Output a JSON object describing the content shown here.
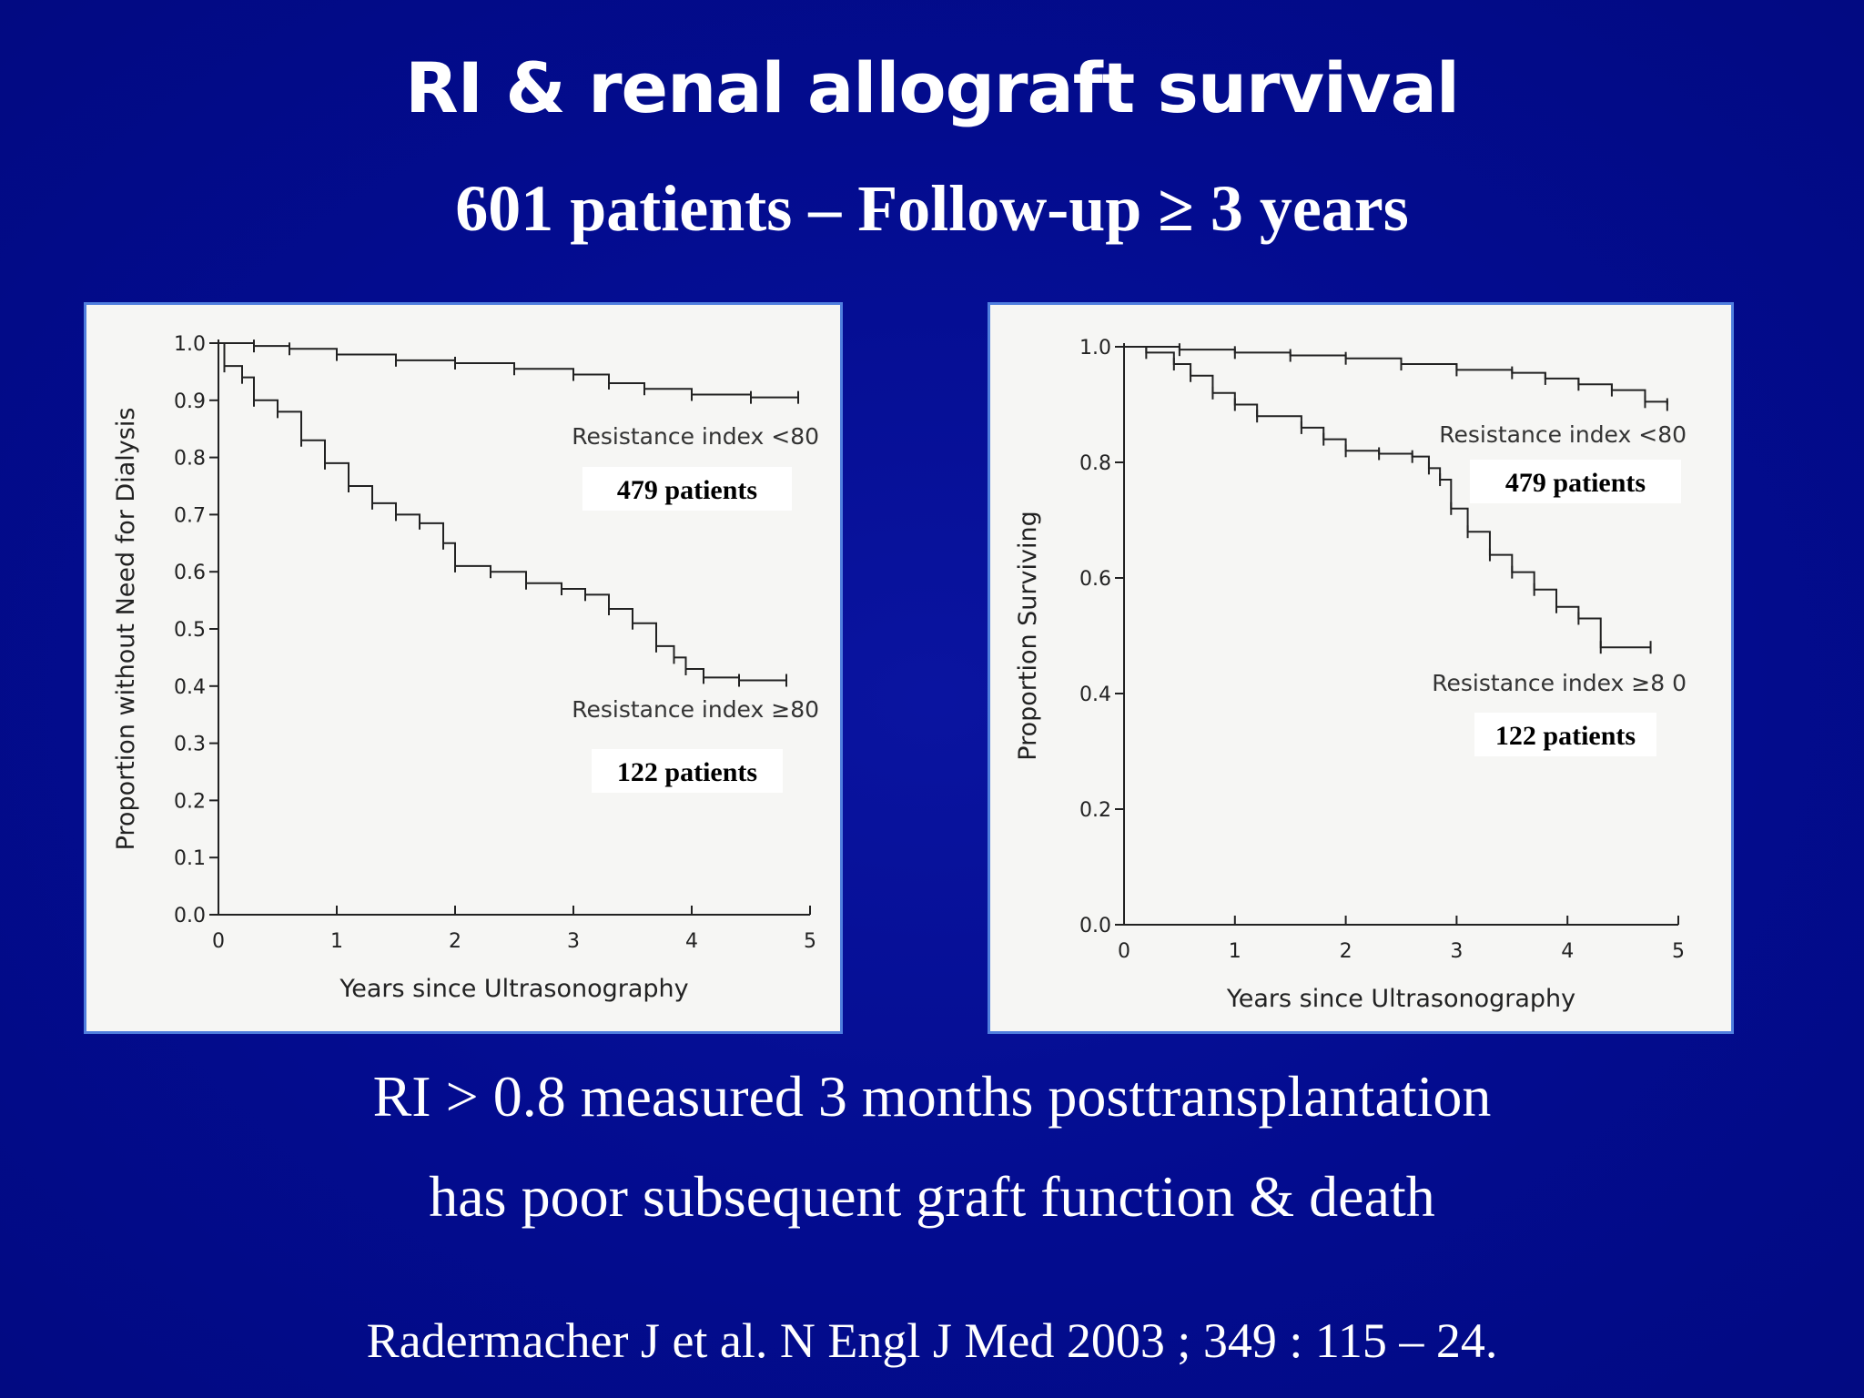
{
  "slide": {
    "title": "RI & renal allograft survival",
    "subtitle": "601 patients – Follow-up ≥ 3 years",
    "conclusion_line1": "RI > 0.8 measured 3 months posttransplantation",
    "conclusion_line2": "has poor subsequent graft function & death",
    "citation": "Radermacher J et al.  N Engl J Med 2003 ; 349 : 115 – 24."
  },
  "colors": {
    "background": "#030c8f",
    "panel_border": "#4f7ede",
    "panel_fill": "#f6f6f4",
    "curve": "#222222"
  },
  "chart_data": [
    {
      "type": "line",
      "xlabel": "Years since Ultrasonography",
      "ylabel": "Proportion without Need for Dialysis",
      "xlim": [
        0,
        5
      ],
      "ylim": [
        0,
        1
      ],
      "xticks": [
        "0",
        "1",
        "2",
        "3",
        "4",
        "5"
      ],
      "yticks": [
        "0.0",
        "0.1",
        "0.2",
        "0.3",
        "0.4",
        "0.5",
        "0.6",
        "0.7",
        "0.8",
        "0.9",
        "1.0"
      ],
      "grid": false,
      "series": [
        {
          "name": "Resistance index <80",
          "patients": "479 patients",
          "x": [
            0,
            0.3,
            0.6,
            1.0,
            1.5,
            2.0,
            2.5,
            3.0,
            3.3,
            3.6,
            4.0,
            4.5,
            4.9
          ],
          "y": [
            1.0,
            0.995,
            0.99,
            0.98,
            0.97,
            0.965,
            0.955,
            0.945,
            0.93,
            0.92,
            0.91,
            0.905,
            0.905
          ]
        },
        {
          "name": "Resistance index ≥80",
          "patients": "122 patients",
          "x": [
            0,
            0.05,
            0.2,
            0.3,
            0.5,
            0.7,
            0.9,
            1.1,
            1.3,
            1.5,
            1.7,
            1.9,
            2.0,
            2.3,
            2.6,
            2.9,
            3.1,
            3.3,
            3.5,
            3.7,
            3.85,
            3.95,
            4.1,
            4.4,
            4.8
          ],
          "y": [
            1.0,
            0.96,
            0.94,
            0.9,
            0.88,
            0.83,
            0.79,
            0.75,
            0.72,
            0.7,
            0.685,
            0.65,
            0.61,
            0.6,
            0.58,
            0.57,
            0.56,
            0.535,
            0.51,
            0.47,
            0.45,
            0.43,
            0.415,
            0.41,
            0.41
          ]
        }
      ]
    },
    {
      "type": "line",
      "xlabel": "Years since Ultrasonography",
      "ylabel": "Proportion Surviving",
      "xlim": [
        0,
        5
      ],
      "ylim": [
        0,
        1
      ],
      "xticks": [
        "0",
        "1",
        "2",
        "3",
        "4",
        "5"
      ],
      "yticks": [
        "0.0",
        "0.2",
        "0.4",
        "0.6",
        "0.8",
        "1.0"
      ],
      "grid": false,
      "series": [
        {
          "name": "Resistance index <80",
          "patients": "479 patients",
          "x": [
            0,
            0.5,
            1.0,
            1.5,
            2.0,
            2.5,
            3.0,
            3.5,
            3.8,
            4.1,
            4.4,
            4.7,
            4.9
          ],
          "y": [
            1.0,
            0.995,
            0.99,
            0.985,
            0.98,
            0.97,
            0.96,
            0.955,
            0.945,
            0.935,
            0.925,
            0.905,
            0.9
          ]
        },
        {
          "name": "Resistance index ≥8 0",
          "patients": "122 patients",
          "x": [
            0,
            0.2,
            0.45,
            0.6,
            0.8,
            1.0,
            1.2,
            1.6,
            1.8,
            2.0,
            2.3,
            2.6,
            2.75,
            2.85,
            2.95,
            3.1,
            3.3,
            3.5,
            3.7,
            3.9,
            4.1,
            4.3,
            4.75
          ],
          "y": [
            1.0,
            0.99,
            0.97,
            0.95,
            0.92,
            0.9,
            0.88,
            0.86,
            0.84,
            0.82,
            0.815,
            0.81,
            0.79,
            0.77,
            0.72,
            0.68,
            0.64,
            0.61,
            0.58,
            0.55,
            0.53,
            0.48,
            0.48
          ]
        }
      ]
    }
  ]
}
